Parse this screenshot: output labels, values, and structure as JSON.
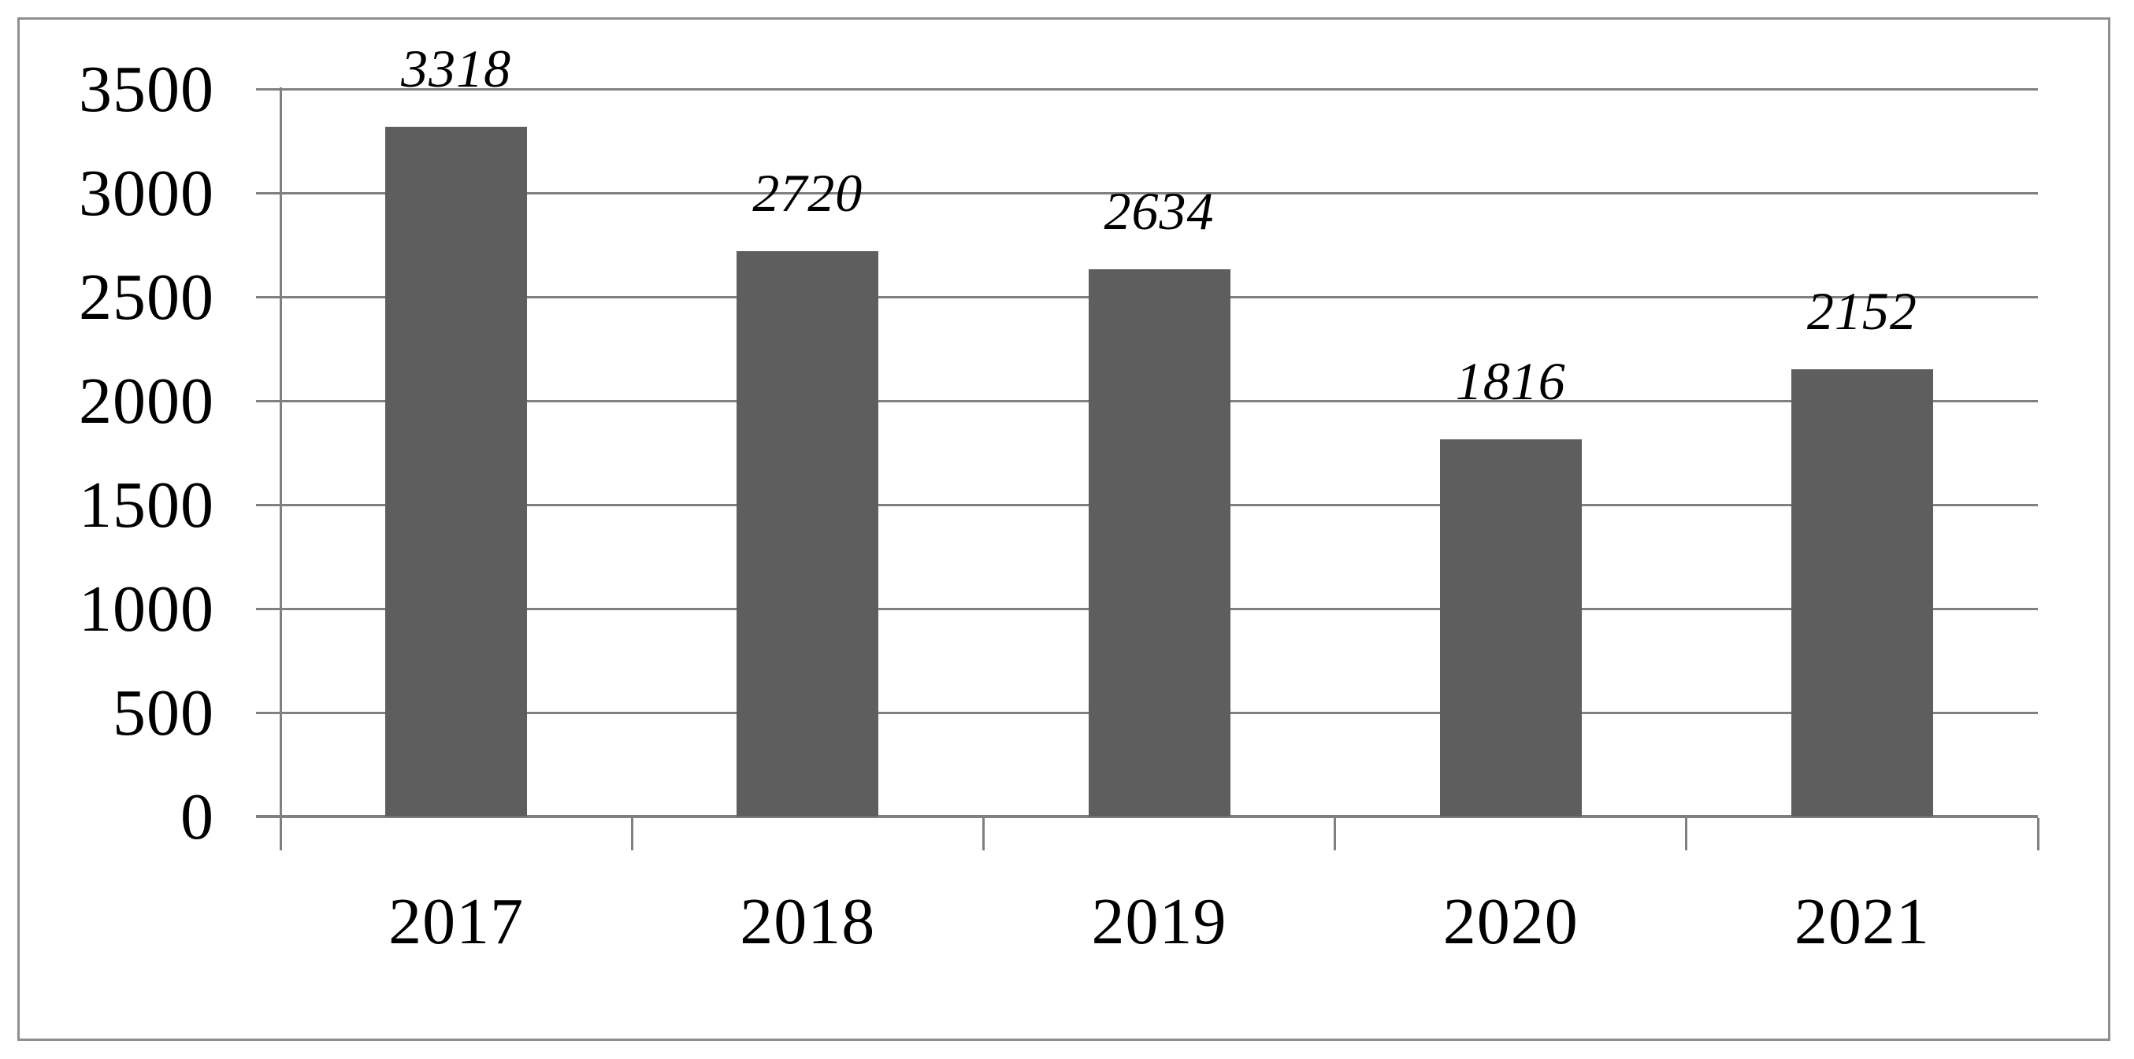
{
  "chart_data": {
    "type": "bar",
    "title": "",
    "xlabel": "",
    "ylabel": "",
    "categories": [
      "2017",
      "2018",
      "2019",
      "2020",
      "2021"
    ],
    "values": [
      3318,
      2720,
      2634,
      1816,
      2152
    ],
    "data_labels": [
      "3318",
      "2720",
      "2634",
      "1816",
      "2152"
    ],
    "ylim": [
      0,
      3500
    ],
    "yticks": [
      0,
      500,
      1000,
      1500,
      2000,
      2500,
      3000,
      3500
    ],
    "ytick_labels": [
      "0",
      "500",
      "1000",
      "1500",
      "2000",
      "2500",
      "3000",
      "3500"
    ],
    "grid": true,
    "legend_position": "none",
    "colors": {
      "bar": "#5e5e5e",
      "gridline": "#808080",
      "axis": "#808080",
      "frame_border": "#8f8f8f",
      "text": "#000000",
      "background": "#ffffff"
    }
  }
}
